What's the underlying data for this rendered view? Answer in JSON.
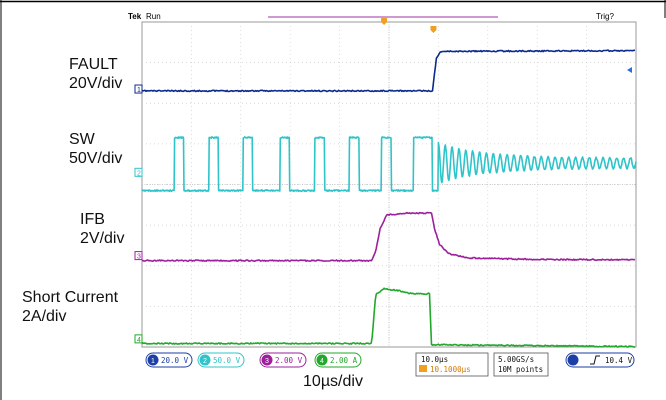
{
  "chart_data": {
    "type": "line",
    "title": "",
    "header": {
      "left": "Tek",
      "run": "Run",
      "right": "Trig?"
    },
    "x_unit": "µs",
    "x_range": [
      0,
      100
    ],
    "x_divisions": 10,
    "y_divisions": 8,
    "grid": true,
    "trigger_x": 49,
    "timebase_label": "10µs/div",
    "channel_labels": [
      {
        "name": "FAULT",
        "scale": "20V/div"
      },
      {
        "name": "SW",
        "scale": "50V/div"
      },
      {
        "name": "IFB",
        "scale": "2V/div"
      },
      {
        "name": "Short Current",
        "scale": "2A/div"
      }
    ],
    "series": [
      {
        "id": "1",
        "name": "FAULT",
        "color": "#0a2a8c",
        "unit": "div",
        "points": [
          [
            0,
            -0.05
          ],
          [
            58.8,
            -0.05
          ],
          [
            59.6,
            0.85
          ],
          [
            60.5,
            1.03
          ],
          [
            100,
            1.05
          ]
        ]
      },
      {
        "id": "2",
        "name": "SW",
        "color": "#2ec4c9",
        "unit": "div",
        "pulses": [
          [
            6.5,
            8.4
          ],
          [
            13.5,
            15.4
          ],
          [
            20.5,
            22.4
          ],
          [
            28,
            29.9
          ],
          [
            35,
            37
          ],
          [
            42,
            44
          ],
          [
            48.5,
            50.5
          ],
          [
            55,
            58.8
          ]
        ],
        "base": -0.5,
        "high": 0.95,
        "ring_start": 60,
        "ring_end": 100,
        "ring_freq_per_us": 0.72
      },
      {
        "id": "3",
        "name": "IFB",
        "color": "#9c1f9c",
        "unit": "div",
        "points": [
          [
            0,
            -0.13
          ],
          [
            46.5,
            -0.13
          ],
          [
            47.3,
            0.1
          ],
          [
            48.2,
            0.7
          ],
          [
            49.5,
            1.05
          ],
          [
            53.5,
            1.1
          ],
          [
            55.5,
            1.1
          ],
          [
            58.6,
            1.1
          ],
          [
            59.2,
            0.7
          ],
          [
            60.2,
            0.3
          ],
          [
            62,
            0.05
          ],
          [
            66,
            -0.06
          ],
          [
            80,
            -0.1
          ],
          [
            100,
            -0.11
          ]
        ]
      },
      {
        "id": "4",
        "name": "Short Current",
        "color": "#22a82a",
        "unit": "div",
        "points": [
          [
            0,
            -0.12
          ],
          [
            46.5,
            -0.12
          ],
          [
            47.3,
            1.15
          ],
          [
            49,
            1.3
          ],
          [
            52,
            1.25
          ],
          [
            54,
            1.18
          ],
          [
            56,
            1.17
          ],
          [
            58.2,
            1.17
          ],
          [
            58.6,
            -0.15
          ],
          [
            100,
            -0.2
          ]
        ]
      }
    ]
  },
  "status_bar": {
    "ch1": "20.0 V",
    "ch2": "50.0 V",
    "ch3": "2.00 V",
    "ch4": "2.00 A",
    "horizontal": "10.0µs",
    "position": "10.1000µs",
    "sample_rate": "5.00GS/s",
    "record": "10M points",
    "trigger_level": "10.4 V"
  }
}
